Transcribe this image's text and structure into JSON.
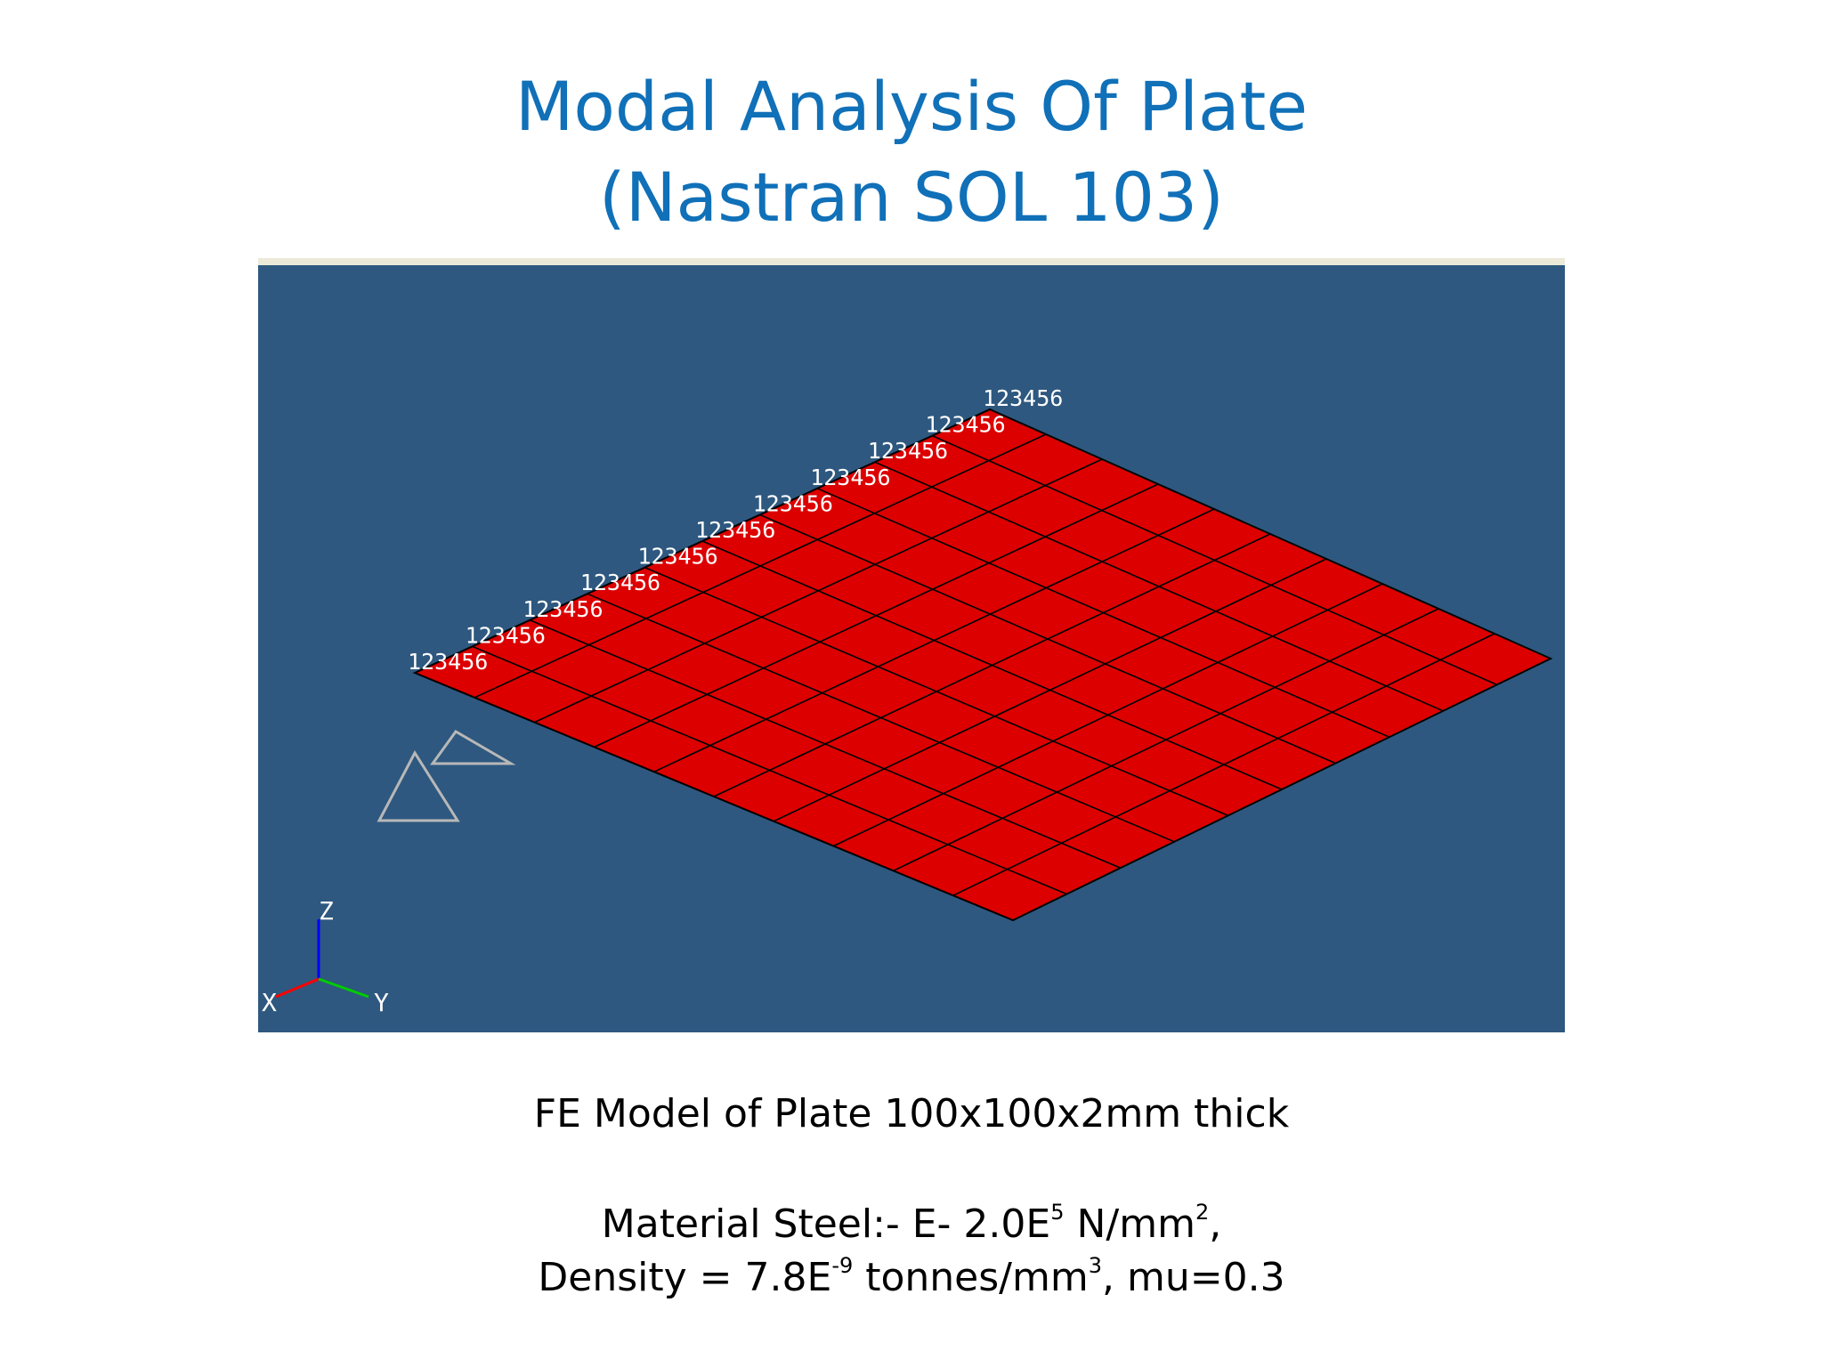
{
  "title": {
    "line1": "Modal Analysis Of Plate",
    "line2": "(Nastran SOL  103)"
  },
  "model_view": {
    "background": "#2e587f",
    "plate_color": "#dd0000",
    "mesh_color": "#000000",
    "mesh_divisions": 10,
    "constraint_label": "123456",
    "constraint_count": 11,
    "axes": {
      "z": "Z",
      "x": "X",
      "y": "Y"
    },
    "axis_colors": {
      "z": "#0000ff",
      "x": "#ff0000",
      "y": "#00cc00"
    }
  },
  "caption": {
    "model": "FE Model of Plate 100x100x2mm thick",
    "material": {
      "prefix": "Material Steel:- E- 2.0E",
      "modulus_exp": "5",
      "unit": " N/mm",
      "unit_exp": "2",
      "suffix": ","
    },
    "density": {
      "prefix": "Density = 7.8E",
      "exp": "-9",
      "unit": " tonnes/mm",
      "unit_exp": "3",
      "suffix": ", mu=0.3"
    }
  }
}
